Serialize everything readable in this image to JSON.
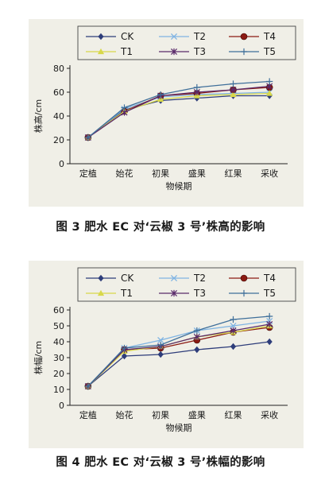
{
  "charts": [
    {
      "caption": "图 3 肥水 EC 对‘云椒 3 号’株高的影响",
      "chart_data": {
        "type": "line",
        "title": "",
        "xlabel": "物候期",
        "ylabel": "株高/cm",
        "categories": [
          "定植",
          "始花",
          "初果",
          "盛果",
          "红果",
          "采收"
        ],
        "ylim": [
          0,
          80
        ],
        "yticks": [
          0,
          20,
          40,
          60,
          80
        ],
        "grid": false,
        "legend_position": "top",
        "series": [
          {
            "name": "CK",
            "values": [
              22,
              45,
              53,
              55,
              57,
              57
            ],
            "color": "#2e3d7a",
            "marker": "diamond"
          },
          {
            "name": "T2",
            "values": [
              22,
              46,
              56,
              58,
              59,
              60
            ],
            "color": "#7fb4e3",
            "marker": "x"
          },
          {
            "name": "T4",
            "values": [
              22,
              44,
              57,
              59,
              62,
              64
            ],
            "color": "#8b1a12",
            "marker": "circle"
          },
          {
            "name": "T1",
            "values": [
              22,
              44,
              54,
              57,
              58,
              59
            ],
            "color": "#d8d84a",
            "marker": "triangle"
          },
          {
            "name": "T3",
            "values": [
              22,
              43,
              57,
              60,
              62,
              65
            ],
            "color": "#5a2a6a",
            "marker": "asterisk"
          },
          {
            "name": "T5",
            "values": [
              22,
              47,
              58,
              64,
              67,
              69
            ],
            "color": "#3f6f9a",
            "marker": "plus"
          }
        ]
      }
    },
    {
      "caption": "图 4 肥水 EC 对‘云椒 3 号’株幅的影响",
      "chart_data": {
        "type": "line",
        "title": "",
        "xlabel": "物候期",
        "ylabel": "株幅/cm",
        "categories": [
          "定植",
          "始花",
          "初果",
          "盛果",
          "红果",
          "采收"
        ],
        "ylim": [
          0,
          60
        ],
        "yticks": [
          0,
          10,
          20,
          30,
          40,
          50,
          60
        ],
        "grid": false,
        "legend_position": "top",
        "series": [
          {
            "name": "CK",
            "values": [
              12,
              31,
              32,
              35,
              37,
              40
            ],
            "color": "#2e3d7a",
            "marker": "diamond"
          },
          {
            "name": "T2",
            "values": [
              12,
              36,
              41,
              47,
              50,
              53
            ],
            "color": "#7fb4e3",
            "marker": "x"
          },
          {
            "name": "T4",
            "values": [
              12,
              35,
              36,
              41,
              46,
              49
            ],
            "color": "#8b1a12",
            "marker": "circle"
          },
          {
            "name": "T1",
            "values": [
              12,
              34,
              37,
              43,
              46,
              50
            ],
            "color": "#d8d84a",
            "marker": "triangle"
          },
          {
            "name": "T3",
            "values": [
              12,
              35,
              37,
              43,
              47,
              51
            ],
            "color": "#5a2a6a",
            "marker": "asterisk"
          },
          {
            "name": "T5",
            "values": [
              12,
              36,
              38,
              47,
              54,
              56
            ],
            "color": "#3f6f9a",
            "marker": "plus"
          }
        ]
      }
    }
  ]
}
